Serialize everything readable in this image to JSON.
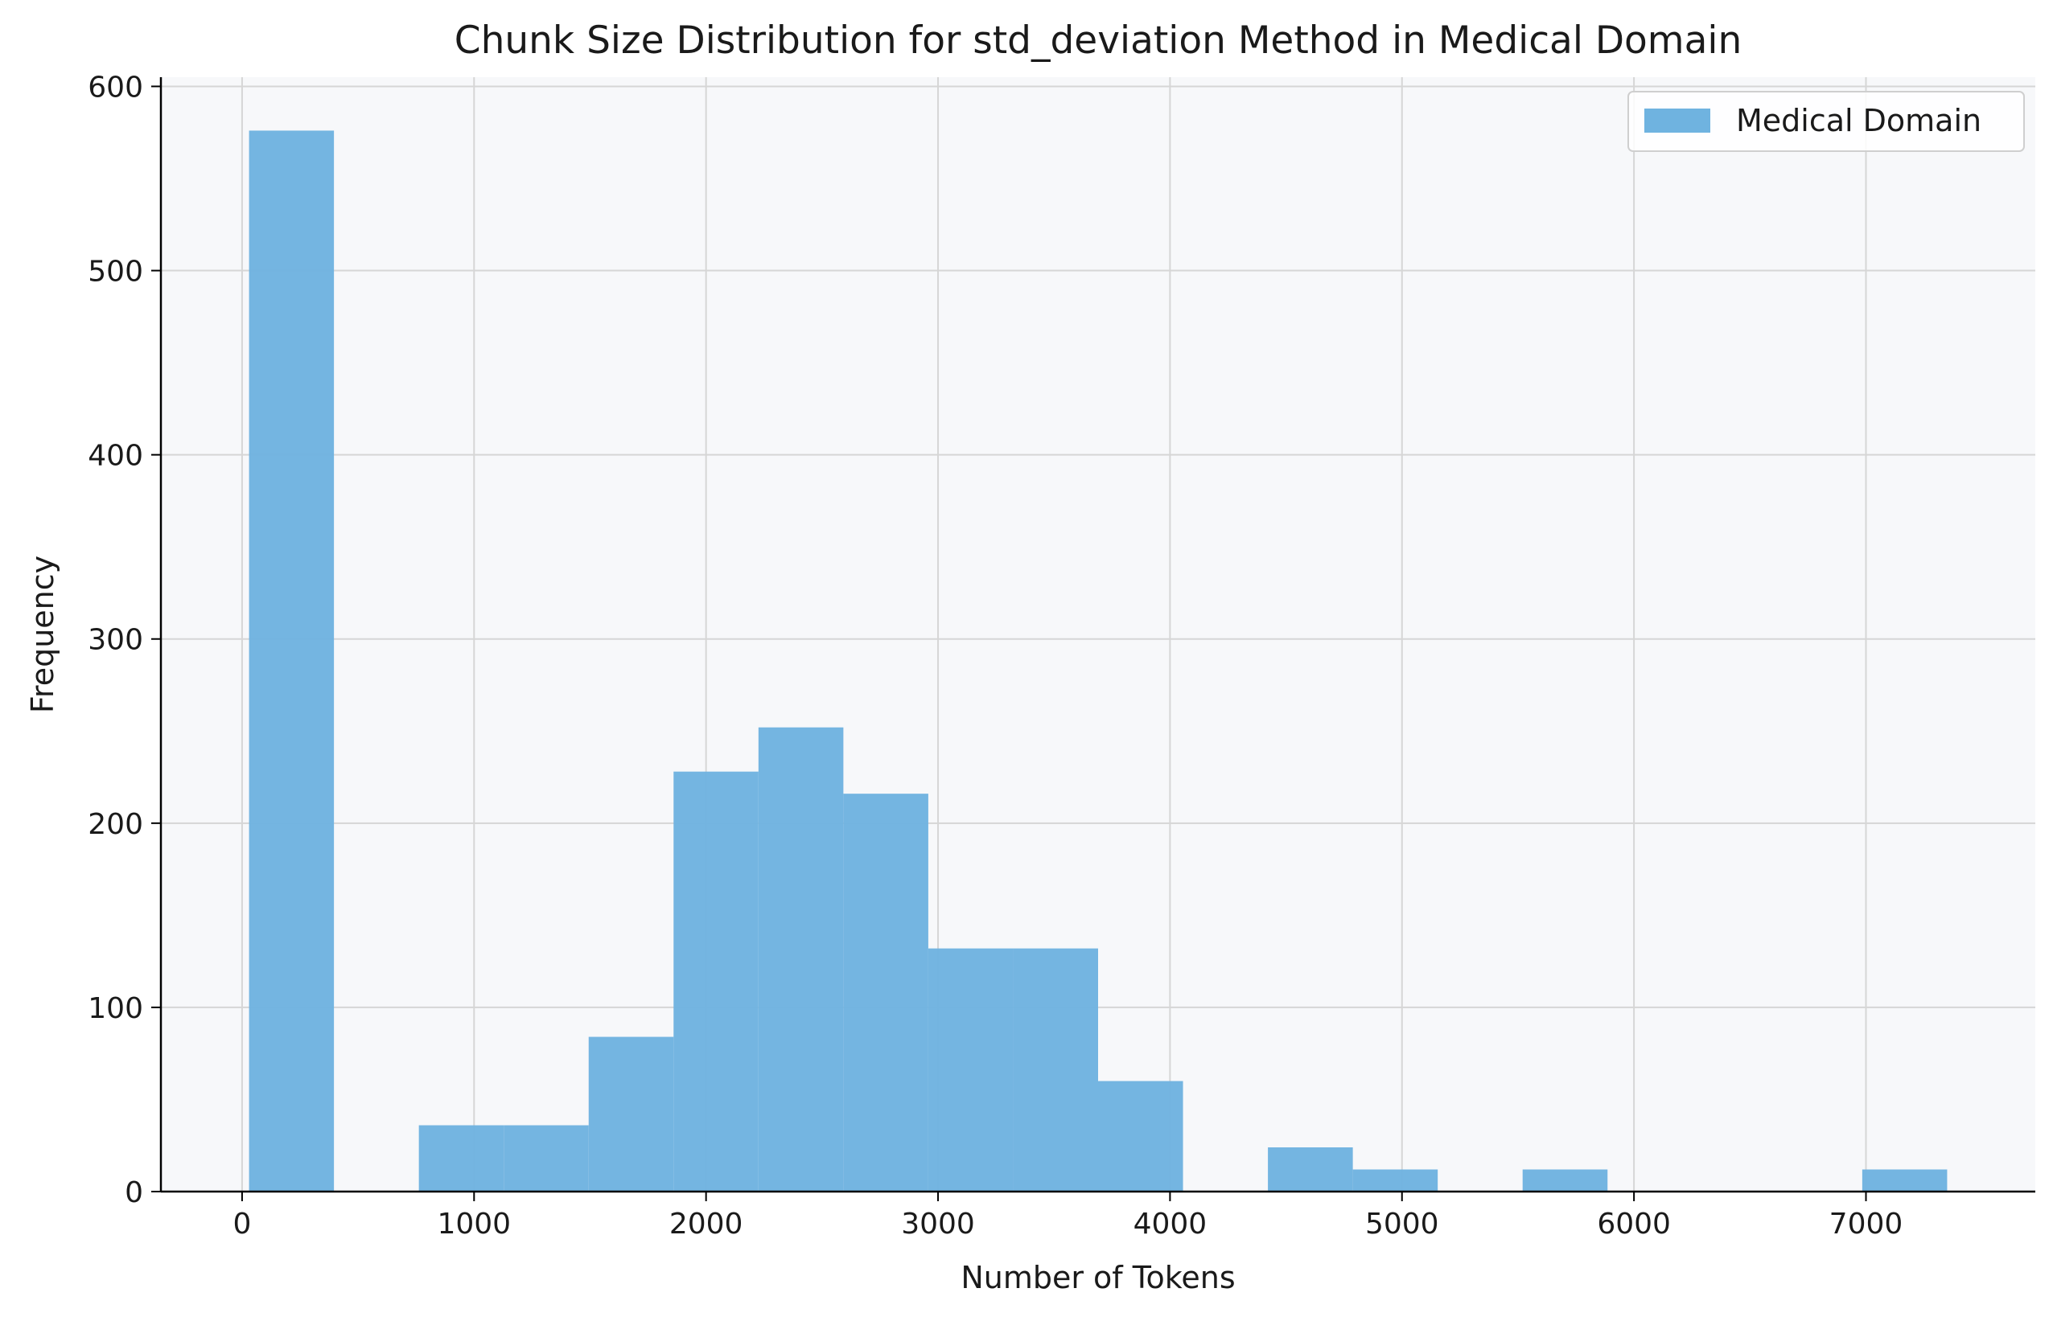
{
  "chart_data": {
    "type": "bar",
    "title": "Chunk Size Distribution for std_deviation Method in Medical Domain",
    "xlabel": "Number of Tokens",
    "ylabel": "Frequency",
    "xlim": [
      -350,
      7730
    ],
    "ylim": [
      0,
      605
    ],
    "xticks": [
      0,
      1000,
      2000,
      3000,
      4000,
      5000,
      6000,
      7000
    ],
    "yticks": [
      0,
      100,
      200,
      300,
      400,
      500,
      600
    ],
    "grid": true,
    "legend_position": "top-right",
    "series": [
      {
        "name": "Medical Domain",
        "color": "#6fb3e0",
        "bins": [
          {
            "x0": 30,
            "x1": 396,
            "value": 576
          },
          {
            "x0": 762,
            "x1": 1128,
            "value": 36
          },
          {
            "x0": 1128,
            "x1": 1494,
            "value": 36
          },
          {
            "x0": 1494,
            "x1": 1860,
            "value": 84
          },
          {
            "x0": 1860,
            "x1": 2226,
            "value": 228
          },
          {
            "x0": 2226,
            "x1": 2592,
            "value": 252
          },
          {
            "x0": 2592,
            "x1": 2958,
            "value": 216
          },
          {
            "x0": 2958,
            "x1": 3324,
            "value": 132
          },
          {
            "x0": 3324,
            "x1": 3690,
            "value": 132
          },
          {
            "x0": 3690,
            "x1": 4056,
            "value": 60
          },
          {
            "x0": 4422,
            "x1": 4788,
            "value": 24
          },
          {
            "x0": 4788,
            "x1": 5154,
            "value": 12
          },
          {
            "x0": 5520,
            "x1": 5886,
            "value": 12
          },
          {
            "x0": 6984,
            "x1": 7350,
            "value": 12
          }
        ]
      }
    ]
  }
}
